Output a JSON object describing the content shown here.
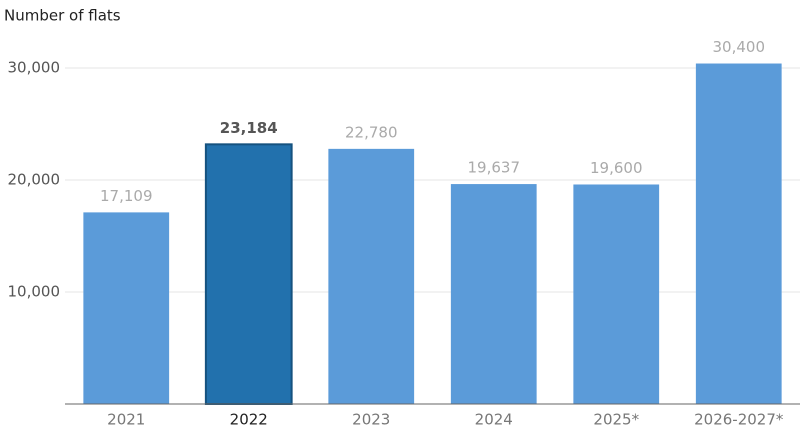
{
  "chart_data": {
    "type": "bar",
    "title": "Number of flats",
    "categories": [
      "2021",
      "2022",
      "2023",
      "2024",
      "2025*",
      "2026-2027*"
    ],
    "values": [
      17109,
      23184,
      22780,
      19637,
      19600,
      30400
    ],
    "value_labels": [
      "17,109",
      "23,184",
      "22,780",
      "19,637",
      "19,600",
      "30,400"
    ],
    "colors": [
      "#5b9bd9",
      "#2271ad",
      "#5b9bd9",
      "#5b9bd9",
      "#5b9bd9",
      "#5b9bd9"
    ],
    "ylim": [
      0,
      32000
    ],
    "yticks": [
      {
        "value": 10000,
        "label": "10,000"
      },
      {
        "value": 20000,
        "label": "20,000"
      },
      {
        "value": 30000,
        "label": "30,000"
      }
    ],
    "grid": true
  }
}
